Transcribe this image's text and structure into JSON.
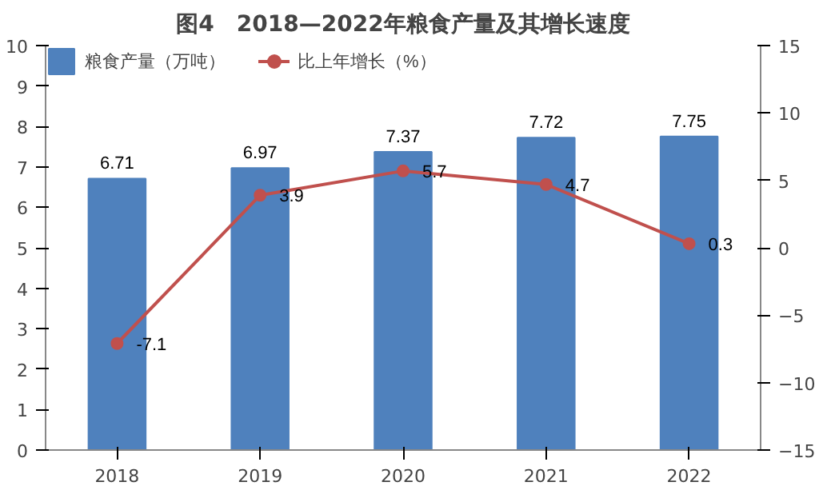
{
  "chart_data": {
    "type": "bar",
    "title": "图4　2018—2022年粮食产量及其增长速度",
    "categories": [
      "2018",
      "2019",
      "2020",
      "2021",
      "2022"
    ],
    "series": [
      {
        "name": "粮食产量（万吨）",
        "color": "#4f81bd",
        "values": [
          6.71,
          6.97,
          7.37,
          7.72,
          7.75
        ]
      },
      {
        "name": "比上年增长（%）",
        "type": "line",
        "axis": "y2",
        "color": "#c0504d",
        "marker": "circle",
        "values": [
          -7.1,
          3.9,
          5.7,
          4.7,
          0.3
        ]
      }
    ],
    "ylim": [
      0,
      10
    ],
    "yticks": [
      0,
      1,
      2,
      3,
      4,
      5,
      6,
      7,
      8,
      9,
      10
    ],
    "y2lim": [
      -15,
      15
    ],
    "y2ticks": [
      -15,
      -10,
      -5,
      0,
      5,
      10,
      15
    ],
    "data_labels": true,
    "legend": "top left",
    "grid": false
  }
}
